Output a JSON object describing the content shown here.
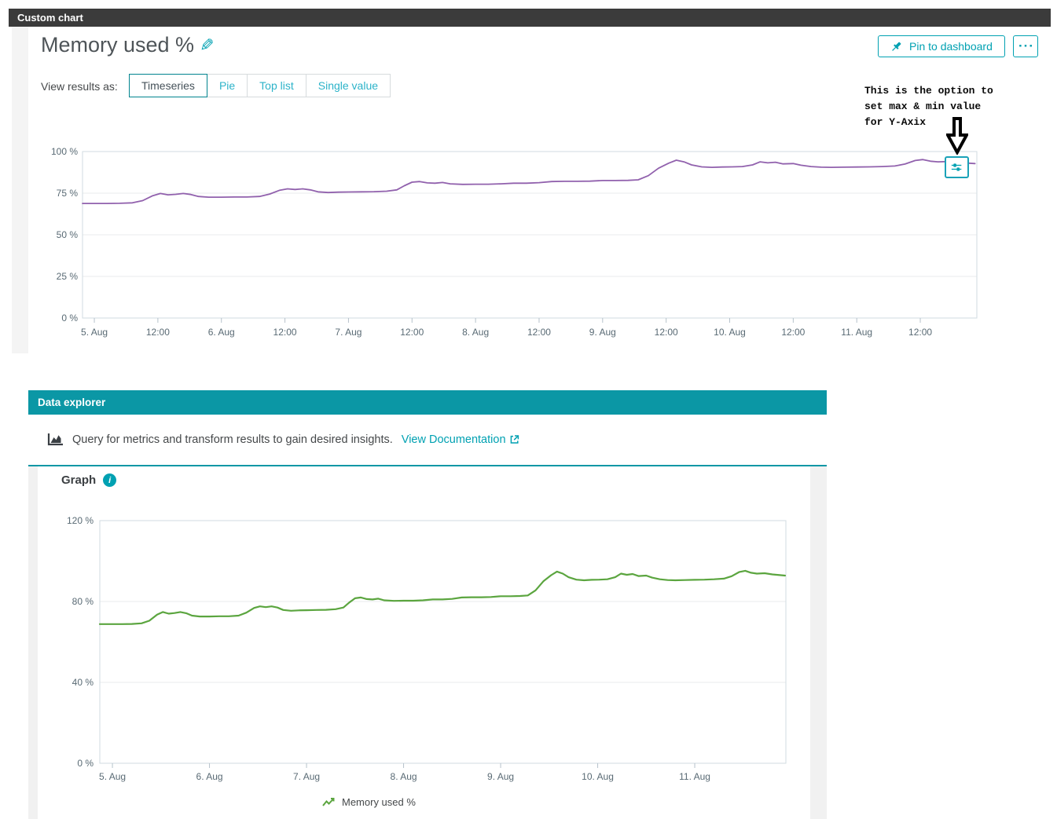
{
  "colors": {
    "accent": "#00a1b2",
    "top_bar_bg": "#3b3b3b",
    "data_explorer_bar_bg": "#0b97a5",
    "selected_tab_border": "#00848e",
    "timeseries_line": "#9161ad",
    "graph_line": "#5ba53f"
  },
  "top_bar": {
    "title": "Custom chart"
  },
  "chart_card": {
    "title": "Memory used %",
    "pin_button_label": "Pin to dashboard",
    "more_button_label": "···",
    "view_results_label": "View results as:",
    "tabs": [
      {
        "label": "Timeseries",
        "selected": true
      },
      {
        "label": "Pie",
        "selected": false
      },
      {
        "label": "Top list",
        "selected": false
      },
      {
        "label": "Single value",
        "selected": false
      }
    ],
    "annotation": {
      "line1": "This is the option to",
      "line2": "set max & min value",
      "line3": "for Y-Axix"
    }
  },
  "data_explorer": {
    "header_title": "Data explorer",
    "description": "Query for metrics and transform results to gain desired insights.",
    "doc_link_label": "View Documentation",
    "graph_section_title": "Graph",
    "legend_label": "Memory used %"
  },
  "chart_data": [
    {
      "type": "line",
      "name": "custom-chart-timeseries",
      "title": "Memory used %",
      "grid": true,
      "legend_position": "none",
      "xlim": [
        4.907,
        11.945
      ],
      "ylim": [
        0,
        100
      ],
      "yticks": [
        {
          "value": 0,
          "label": "0 %"
        },
        {
          "value": 25,
          "label": "25 %"
        },
        {
          "value": 50,
          "label": "50 %"
        },
        {
          "value": 75,
          "label": "75 %"
        },
        {
          "value": 100,
          "label": "100 %"
        }
      ],
      "xticks": [
        {
          "value": 5,
          "label": "5. Aug"
        },
        {
          "value": 5.5,
          "label": "12:00"
        },
        {
          "value": 6,
          "label": "6. Aug"
        },
        {
          "value": 6.5,
          "label": "12:00"
        },
        {
          "value": 7,
          "label": "7. Aug"
        },
        {
          "value": 7.5,
          "label": "12:00"
        },
        {
          "value": 8,
          "label": "8. Aug"
        },
        {
          "value": 8.5,
          "label": "12:00"
        },
        {
          "value": 9,
          "label": "9. Aug"
        },
        {
          "value": 9.5,
          "label": "12:00"
        },
        {
          "value": 10,
          "label": "10. Aug"
        },
        {
          "value": 10.5,
          "label": "12:00"
        },
        {
          "value": 11,
          "label": "11. Aug"
        },
        {
          "value": 11.5,
          "label": "12:00"
        }
      ],
      "series": [
        {
          "name": "Memory used %",
          "color": "#9161ad",
          "x": [
            4.86,
            5,
            5.1,
            5.2,
            5.3,
            5.38,
            5.46,
            5.52,
            5.58,
            5.64,
            5.7,
            5.76,
            5.82,
            5.9,
            6,
            6.1,
            6.2,
            6.3,
            6.38,
            6.46,
            6.52,
            6.58,
            6.64,
            6.7,
            6.76,
            6.84,
            6.92,
            7,
            7.1,
            7.2,
            7.3,
            7.38,
            7.44,
            7.5,
            7.56,
            7.62,
            7.68,
            7.74,
            7.8,
            7.9,
            8,
            8.1,
            8.2,
            8.3,
            8.4,
            8.5,
            8.6,
            8.7,
            8.8,
            8.9,
            9,
            9.1,
            9.2,
            9.28,
            9.36,
            9.44,
            9.52,
            9.58,
            9.64,
            9.7,
            9.78,
            9.86,
            9.94,
            10.02,
            10.1,
            10.18,
            10.24,
            10.3,
            10.36,
            10.42,
            10.5,
            10.56,
            10.64,
            10.72,
            10.8,
            10.9,
            11,
            11.1,
            11.2,
            11.3,
            11.38,
            11.46,
            11.52,
            11.58,
            11.64,
            11.72,
            11.8,
            11.93
          ],
          "values": [
            68.8,
            68.8,
            68.8,
            68.9,
            69.2,
            70.5,
            73.5,
            74.8,
            74,
            74.3,
            74.8,
            74.2,
            73,
            72.6,
            72.6,
            72.7,
            72.7,
            73,
            74.5,
            76.8,
            77.6,
            77.2,
            77.6,
            77,
            75.8,
            75.4,
            75.6,
            75.7,
            75.8,
            75.9,
            76.2,
            77,
            79.5,
            81.6,
            82,
            81.2,
            81,
            81.4,
            80.6,
            80.3,
            80.4,
            80.4,
            80.6,
            81,
            81,
            81.3,
            82,
            82.1,
            82.1,
            82.2,
            82.6,
            82.6,
            82.7,
            83,
            85.5,
            90,
            93,
            94.8,
            93.8,
            92,
            90.8,
            90.5,
            90.7,
            90.8,
            91,
            92,
            93.8,
            93.2,
            93.6,
            92.6,
            92.8,
            91.8,
            91,
            90.6,
            90.5,
            90.6,
            90.7,
            90.8,
            91,
            91.3,
            92.5,
            94.6,
            95.2,
            94.2,
            93.8,
            94,
            93.4,
            92.8
          ]
        }
      ]
    },
    {
      "type": "line",
      "name": "data-explorer-graph",
      "title": "Graph",
      "grid": true,
      "legend_position": "bottom",
      "xlim": [
        4.87,
        11.939
      ],
      "ylim": [
        0,
        120
      ],
      "yticks": [
        {
          "value": 0,
          "label": "0 %"
        },
        {
          "value": 40,
          "label": "40 %"
        },
        {
          "value": 80,
          "label": "80 %"
        },
        {
          "value": 120,
          "label": "120 %"
        }
      ],
      "xticks": [
        {
          "value": 5,
          "label": "5. Aug"
        },
        {
          "value": 6,
          "label": "6. Aug"
        },
        {
          "value": 7,
          "label": "7. Aug"
        },
        {
          "value": 8,
          "label": "8. Aug"
        },
        {
          "value": 9,
          "label": "9. Aug"
        },
        {
          "value": 10,
          "label": "10. Aug"
        },
        {
          "value": 11,
          "label": "11. Aug"
        }
      ],
      "series": [
        {
          "name": "Memory used %",
          "color": "#5ba53f",
          "x": [
            4.86,
            5,
            5.1,
            5.2,
            5.3,
            5.38,
            5.46,
            5.52,
            5.58,
            5.64,
            5.7,
            5.76,
            5.82,
            5.9,
            6,
            6.1,
            6.2,
            6.3,
            6.38,
            6.46,
            6.52,
            6.58,
            6.64,
            6.7,
            6.76,
            6.84,
            6.92,
            7,
            7.1,
            7.2,
            7.3,
            7.38,
            7.44,
            7.5,
            7.56,
            7.62,
            7.68,
            7.74,
            7.8,
            7.9,
            8,
            8.1,
            8.2,
            8.3,
            8.4,
            8.5,
            8.6,
            8.7,
            8.8,
            8.9,
            9,
            9.1,
            9.2,
            9.28,
            9.36,
            9.44,
            9.52,
            9.58,
            9.64,
            9.7,
            9.78,
            9.86,
            9.94,
            10.02,
            10.1,
            10.18,
            10.24,
            10.3,
            10.36,
            10.42,
            10.5,
            10.56,
            10.64,
            10.72,
            10.8,
            10.9,
            11,
            11.1,
            11.2,
            11.3,
            11.38,
            11.46,
            11.52,
            11.58,
            11.64,
            11.72,
            11.8,
            11.93
          ],
          "values": [
            68.8,
            68.8,
            68.8,
            68.9,
            69.2,
            70.5,
            73.5,
            74.8,
            74,
            74.3,
            74.8,
            74.2,
            73,
            72.6,
            72.6,
            72.7,
            72.7,
            73,
            74.5,
            76.8,
            77.6,
            77.2,
            77.6,
            77,
            75.8,
            75.4,
            75.6,
            75.7,
            75.8,
            75.9,
            76.2,
            77,
            79.5,
            81.6,
            82,
            81.2,
            81,
            81.4,
            80.6,
            80.3,
            80.4,
            80.4,
            80.6,
            81,
            81,
            81.3,
            82,
            82.1,
            82.1,
            82.2,
            82.6,
            82.6,
            82.7,
            83,
            85.5,
            90,
            93,
            94.8,
            93.8,
            92,
            90.8,
            90.5,
            90.7,
            90.8,
            91,
            92,
            93.8,
            93.2,
            93.6,
            92.6,
            92.8,
            91.8,
            91,
            90.6,
            90.5,
            90.6,
            90.7,
            90.8,
            91,
            91.3,
            92.5,
            94.6,
            95.2,
            94.2,
            93.8,
            94,
            93.4,
            92.8
          ]
        }
      ]
    }
  ]
}
